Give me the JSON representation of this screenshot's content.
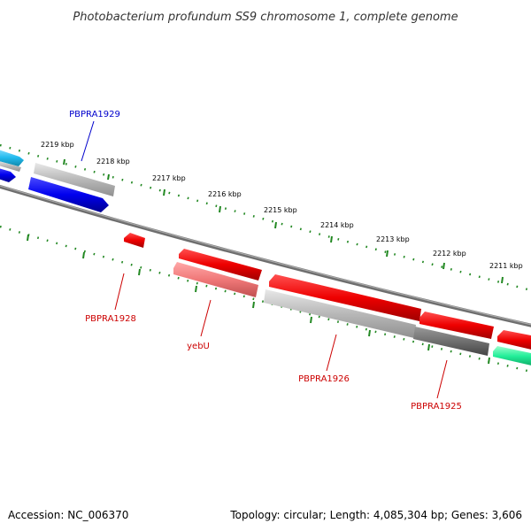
{
  "title": "Photobacterium profundum SS9 chromosome 1, complete genome",
  "scale": {
    "unit": "kbp",
    "ticks": [
      {
        "value": 2219,
        "label": "2219 kbp"
      },
      {
        "value": 2218,
        "label": "2218 kbp"
      },
      {
        "value": 2217,
        "label": "2217 kbp"
      },
      {
        "value": 2216,
        "label": "2216 kbp"
      },
      {
        "value": 2215,
        "label": "2215 kbp"
      },
      {
        "value": 2214,
        "label": "2214 kbp"
      },
      {
        "value": 2213,
        "label": "2213 kbp"
      },
      {
        "value": 2212,
        "label": "2212 kbp"
      },
      {
        "value": 2211,
        "label": "2211 kbp"
      }
    ]
  },
  "gene_labels": [
    {
      "name": "PBPRA1929",
      "strand": "forward",
      "color": "#0000cc"
    },
    {
      "name": "PBPRA1928",
      "strand": "reverse",
      "color": "#cc0000"
    },
    {
      "name": "yebU",
      "strand": "reverse",
      "color": "#cc0000"
    },
    {
      "name": "PBPRA1926",
      "strand": "reverse",
      "color": "#cc0000"
    },
    {
      "name": "PBPRA1925",
      "strand": "reverse",
      "color": "#cc0000"
    }
  ],
  "colors": {
    "backbone": "#808080",
    "forward_gene": "#0000ee",
    "reverse_gene": "#ee0000",
    "pale_reverse_gene": "#f07878",
    "cyan_gene": "#22bbee",
    "green_gene": "#22ee99",
    "grey_feature": "#b8b8b8",
    "dark_feature": "#707070",
    "tick_marks": "#228822"
  },
  "footer": {
    "accession": "Accession: NC_006370",
    "summary": "Topology: circular; Length: 4,085,304 bp; Genes: 3,606"
  }
}
